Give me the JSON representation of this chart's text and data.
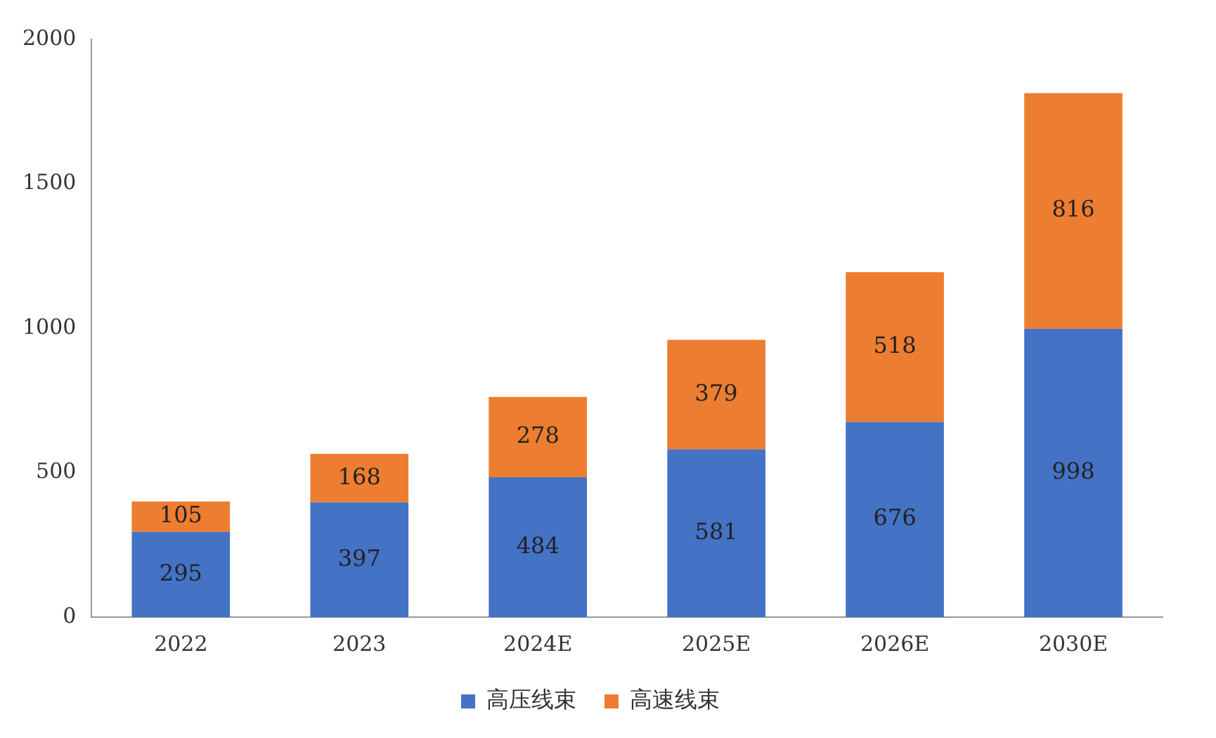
{
  "chart_data": {
    "type": "bar",
    "stacked": true,
    "categories": [
      "2022",
      "2023",
      "2024E",
      "2025E",
      "2026E",
      "2030E"
    ],
    "series": [
      {
        "name": "高压线束",
        "color": "#4472c4",
        "values": [
          295,
          397,
          484,
          581,
          676,
          998
        ]
      },
      {
        "name": "高速线束",
        "color": "#ed7d31",
        "values": [
          105,
          168,
          278,
          379,
          518,
          816
        ]
      }
    ],
    "ylim": [
      0,
      2000
    ],
    "yticks": [
      0,
      500,
      1000,
      1500,
      2000
    ],
    "grid": false,
    "legend": "bottom",
    "data_labels": true
  }
}
